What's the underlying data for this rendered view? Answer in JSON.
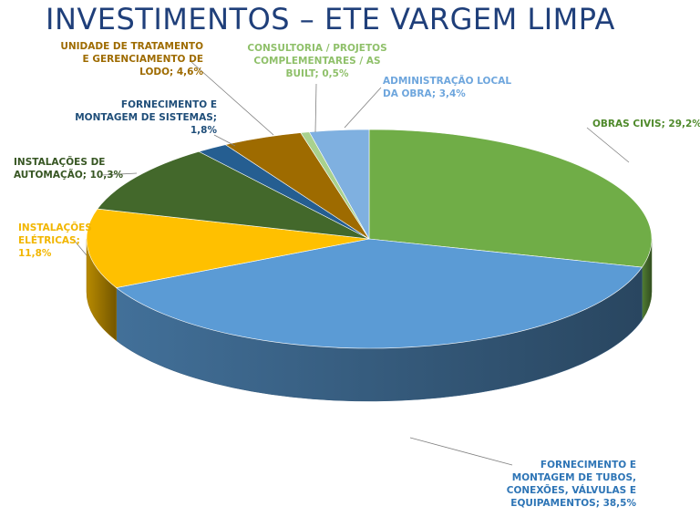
{
  "title": "INVESTIMENTOS – ETE VARGEM LIMPA",
  "chart_data": {
    "type": "pie",
    "title": "INVESTIMENTOS – ETE VARGEM LIMPA",
    "slices": [
      {
        "label_lines": [
          "OBRAS CIVIS; 29,2%"
        ],
        "value": 29.2,
        "color": "#70ad47",
        "label_color": "#4f8a2b"
      },
      {
        "label_lines": [
          "FORNECIMENTO E",
          "MONTAGEM DE TUBOS,",
          "CONEXÕES, VÁLVULAS E",
          "EQUIPAMENTOS; 38,5%"
        ],
        "value": 38.5,
        "color": "#5b9bd5",
        "label_color": "#2e75b6"
      },
      {
        "label_lines": [
          "INSTALAÇÕES",
          "ELÉTRICAS;",
          "11,8%"
        ],
        "value": 11.8,
        "color": "#ffc000",
        "label_color": "#f2b600"
      },
      {
        "label_lines": [
          "INSTALAÇÕES DE",
          "AUTOMAÇÃO; 10,3%"
        ],
        "value": 10.3,
        "color": "#43682b",
        "label_color": "#375623"
      },
      {
        "label_lines": [
          "FORNECIMENTO E",
          "MONTAGEM DE SISTEMAS;",
          "1,8%"
        ],
        "value": 1.8,
        "color": "#255e91",
        "label_color": "#1f4e79"
      },
      {
        "label_lines": [
          "UNIDADE DE TRATAMENTO",
          "E GERENCIAMENTO DE",
          "LODO; 4,6%"
        ],
        "value": 4.6,
        "color": "#9e6b00",
        "label_color": "#9e6b00"
      },
      {
        "label_lines": [
          "CONSULTORIA / PROJETOS",
          "COMPLEMENTARES / AS",
          "BUILT; 0,5%"
        ],
        "value": 0.5,
        "color": "#a9d18e",
        "label_color": "#8fc06a"
      },
      {
        "label_lines": [
          "ADMINISTRAÇÃO LOCAL",
          "DA OBRA; 3,4%"
        ],
        "value": 3.4,
        "color": "#7fb0e0",
        "label_color": "#6ea6dd"
      }
    ]
  }
}
